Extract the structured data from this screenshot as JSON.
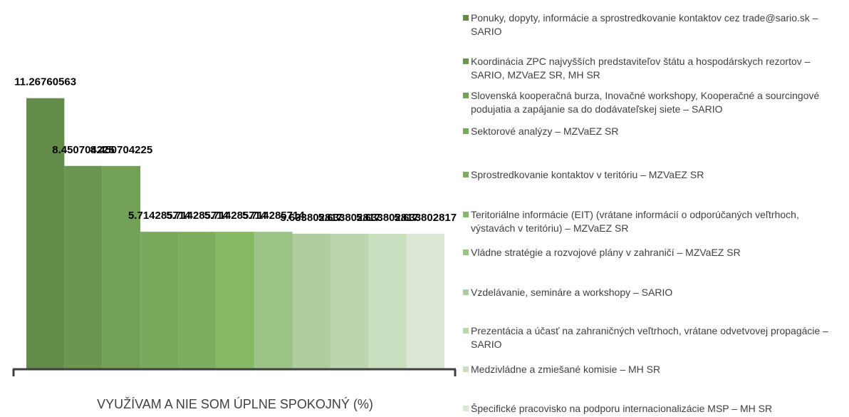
{
  "chart_data": {
    "type": "bar",
    "categories": [
      "VYUŽÍVAM A NIE SOM ÚPLNE SPOKOJNÝ (%)"
    ],
    "ylim": [
      0,
      12
    ],
    "series": [
      {
        "name": "Ponuky, dopyty, informácie a sprostredkovanie kontaktov cez trade@sario.sk – SARIO",
        "color": "#638c4a",
        "values": [
          11.26760563
        ]
      },
      {
        "name": "Koordinácia ZPC najvyšších predstaviteľov štátu a hospodárskych rezortov – SARIO, MZVaEZ SR, MH SR",
        "color": "#6a9650",
        "values": [
          8.450704225
        ]
      },
      {
        "name": "Slovenská kooperačná burza, Inovačné workshopy, Kooperačné a sourcingové podujatia a zapájanie sa do dodávateľskej siete – SARIO",
        "color": "#72a056",
        "values": [
          8.450704225
        ]
      },
      {
        "name": "Sektorové analýzy – MZVaEZ SR",
        "color": "#78a85a",
        "values": [
          5.714285714
        ]
      },
      {
        "name": "Sprostredkovanie kontaktov v teritóriu – MZVaEZ SR",
        "color": "#7dae5e",
        "values": [
          5.714285714
        ]
      },
      {
        "name": "Teritoriálne informácie (EIT) (vrátane informácií o odporúčaných veľtrhoch, výstavách v teritóriu) – MZVaEZ SR",
        "color": "#86b965",
        "values": [
          5.714285714
        ]
      },
      {
        "name": "Vládne stratégie a rozvojové plány v zahraničí – MZVaEZ SR",
        "color": "#9cc386",
        "values": [
          5.714285714
        ]
      },
      {
        "name": "Vzdelávanie, semináre a workshopy – SARIO",
        "color": "#aecc9d",
        "values": [
          5.633802817
        ]
      },
      {
        "name": "Prezentácia a účasť na zahraničných veľtrhoch, vrátane odvetvovej propagácie – SARIO",
        "color": "#bcd5ae",
        "values": [
          5.633802817
        ]
      },
      {
        "name": "Medzivládne a zmiešané komisie – MH SR",
        "color": "#cadec0",
        "values": [
          5.633802817
        ]
      },
      {
        "name": "Špecifické pracovisko na podporu internacionalizácie MSP – MH SR",
        "color": "#dce7d5",
        "values": [
          5.633802817
        ]
      }
    ]
  }
}
